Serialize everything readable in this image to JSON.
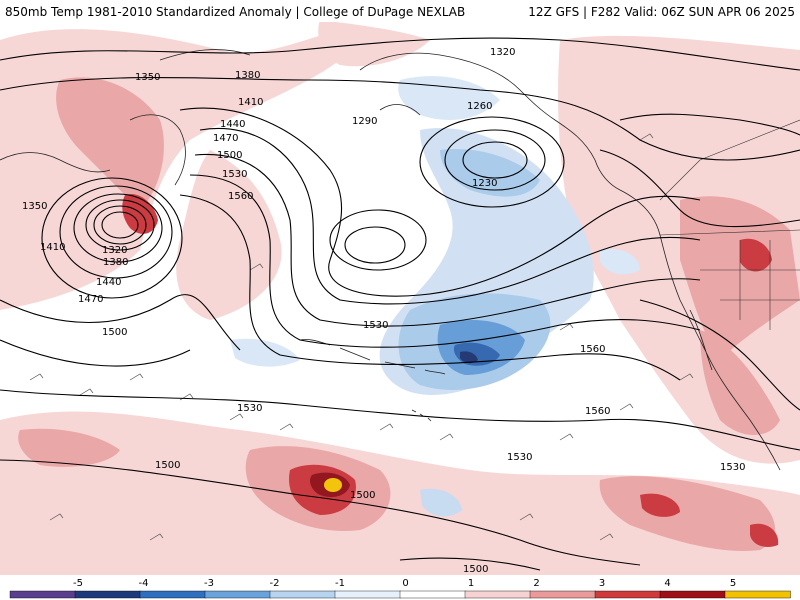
{
  "header": {
    "left": "850mb Temp 1981-2010 Standardized Anomaly | College of DuPage NEXLAB",
    "right": "12Z GFS | F282 Valid: 06Z SUN APR 06 2025"
  },
  "colorbar": {
    "ticks": [
      "-5",
      "-4",
      "-3",
      "-2",
      "-1",
      "0",
      "1",
      "2",
      "3",
      "4",
      "5"
    ],
    "colors": [
      "#5a3f8e",
      "#1f3a7a",
      "#2e6fbf",
      "#6aa3db",
      "#b6d3ef",
      "#e6f0fa",
      "#ffffff",
      "#f7d2d2",
      "#ea9a9a",
      "#cf3a3a",
      "#9e0f17",
      "#f2c200"
    ]
  },
  "contours": {
    "unit": "m (850mb geopotential height)",
    "labels": [
      "1350",
      "1320",
      "1380",
      "1410",
      "1440",
      "1470",
      "1500",
      "1530",
      "1560",
      "1290",
      "1260",
      "1230",
      "1350",
      "1320",
      "1380",
      "1410",
      "1440",
      "1470",
      "1500",
      "1530",
      "1560",
      "1500",
      "1530",
      "1500",
      "1530",
      "1500",
      "1560",
      "1530"
    ]
  },
  "anomaly_colors": {
    "light_red": "#f5c9c9",
    "red": "#e58484",
    "dark_red": "#c2202a",
    "maroon": "#8e0b14",
    "yellow": "#f2c200",
    "light_blue": "#c5daf1",
    "blue": "#8fbbe6",
    "mid_blue": "#4f8fd3",
    "dark_blue": "#2a5fa8",
    "navy": "#1a2f6e"
  }
}
